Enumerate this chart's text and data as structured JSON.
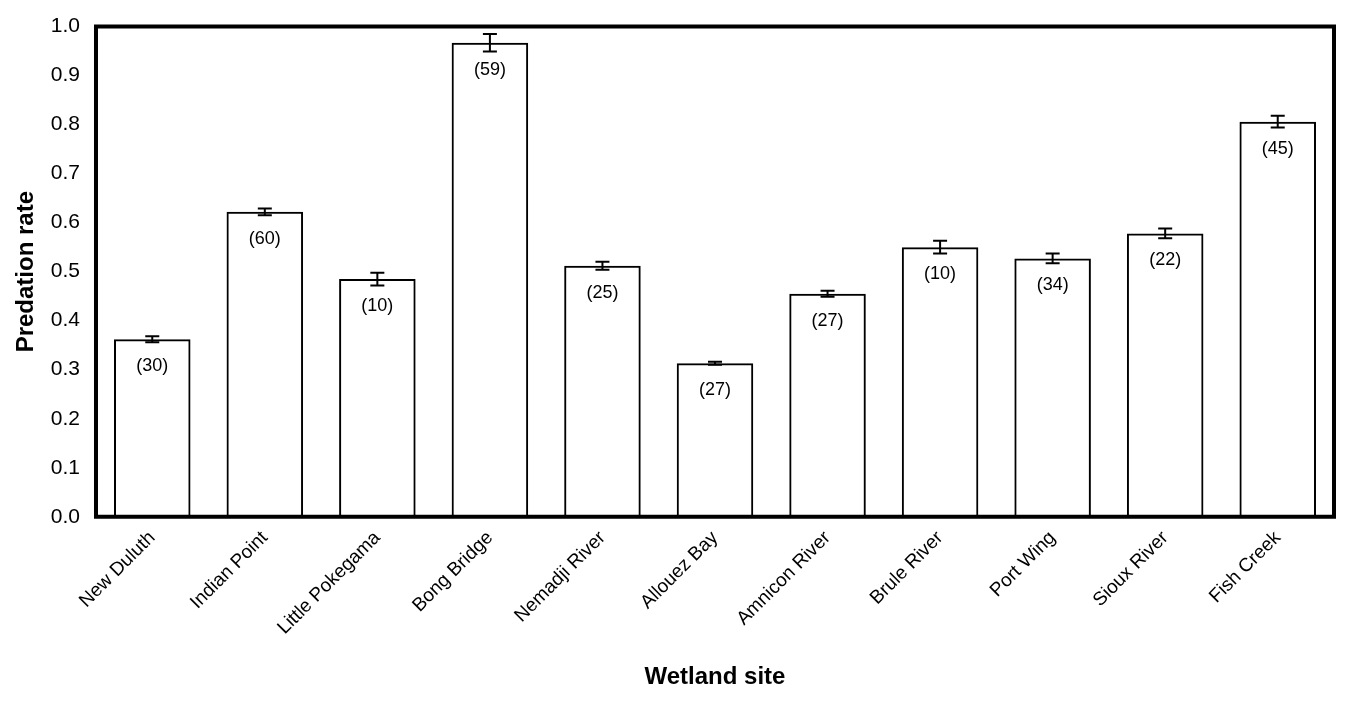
{
  "chart_data": {
    "type": "bar",
    "xlabel": "Wetland site",
    "ylabel": "Predation rate",
    "categories": [
      "New Duluth",
      "Indian Point",
      "Little Pokegama",
      "Bong Bridge",
      "Nemadji River",
      "Allouez Bay",
      "Amnicon River",
      "Brule River",
      "Port Wing",
      "Sioux River",
      "Fish Creek"
    ],
    "values": [
      0.362,
      0.622,
      0.485,
      0.967,
      0.512,
      0.313,
      0.455,
      0.55,
      0.527,
      0.578,
      0.806
    ],
    "errors": [
      0.006,
      0.007,
      0.013,
      0.018,
      0.008,
      0.003,
      0.006,
      0.013,
      0.01,
      0.01,
      0.012
    ],
    "annotations": [
      {
        "text": "(30)",
        "x": "New Duluth",
        "y": 0.362
      },
      {
        "text": "(60)",
        "x": "Indian Point",
        "y": 0.622
      },
      {
        "text": "(10)",
        "x": "Little Pokegama",
        "y": 0.485
      },
      {
        "text": "(59)",
        "x": "Bong Bridge",
        "y": 0.967
      },
      {
        "text": "(25)",
        "x": "Nemadji River",
        "y": 0.512
      },
      {
        "text": "(27)",
        "x": "Allouez Bay",
        "y": 0.313
      },
      {
        "text": "(27)",
        "x": "Amnicon River",
        "y": 0.455
      },
      {
        "text": "(10)",
        "x": "Brule River",
        "y": 0.55
      },
      {
        "text": "(34)",
        "x": "Port Wing",
        "y": 0.527
      },
      {
        "text": "(22)",
        "x": "Sioux River",
        "y": 0.578
      },
      {
        "text": "(45)",
        "x": "Fish Creek",
        "y": 0.806
      }
    ],
    "color": "#000000",
    "ylim": [
      0,
      1
    ],
    "yticks": [
      {
        "value": 0,
        "label": "0.0"
      },
      0.1,
      0.2,
      0.3,
      0.4,
      0.5,
      0.6,
      0.7,
      0.8,
      0.9,
      {
        "value": 1,
        "label": "1.0"
      }
    ],
    "grid": false,
    "legend": false
  }
}
